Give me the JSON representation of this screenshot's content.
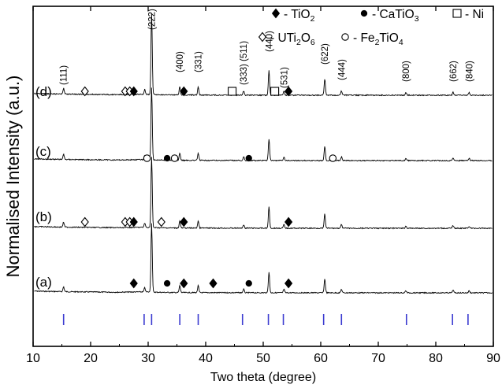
{
  "chart_data": {
    "type": "line",
    "xlabel": "Two theta (degree)",
    "ylabel": "Normalised Intensity (a.u.)",
    "xlim": [
      10,
      90
    ],
    "x_ticks": [
      10,
      20,
      30,
      40,
      50,
      60,
      70,
      80,
      90
    ],
    "legend": [
      {
        "symbol": "filled-diamond",
        "label": "- TiO",
        "sub": "2",
        "suffix": ""
      },
      {
        "symbol": "filled-circle",
        "label": "- CaTiO",
        "sub": "3",
        "suffix": ""
      },
      {
        "symbol": "open-square",
        "label": "- Ni",
        "sub": "",
        "suffix": ""
      },
      {
        "symbol": "open-diamond",
        "label": "- UTi",
        "sub": "2",
        "suffix": "O",
        "sub2": "6"
      },
      {
        "symbol": "open-circle",
        "label": "- Fe",
        "sub": "2",
        "suffix": "TiO",
        "sub2": "4"
      }
    ],
    "series": [
      {
        "name": "(a)",
        "label": "(a)"
      },
      {
        "name": "(b)",
        "label": "(b)"
      },
      {
        "name": "(c)",
        "label": "(c)"
      },
      {
        "name": "(d)",
        "label": "(d)"
      }
    ],
    "peaks": [
      {
        "x": 15.3,
        "h": 0.07,
        "hkl": "(111)"
      },
      {
        "x": 29.4,
        "h": 0.06,
        "hkl": ""
      },
      {
        "x": 30.6,
        "h": 1.0,
        "hkl": "(222)"
      },
      {
        "x": 35.5,
        "h": 0.1,
        "hkl": "(400)"
      },
      {
        "x": 38.7,
        "h": 0.1,
        "hkl": "(331)"
      },
      {
        "x": 46.6,
        "h": 0.05,
        "hkl": "(333) (511)"
      },
      {
        "x": 51.0,
        "h": 0.3,
        "hkl": "(440)"
      },
      {
        "x": 53.6,
        "h": 0.05,
        "hkl": "(531)"
      },
      {
        "x": 60.7,
        "h": 0.2,
        "hkl": "(622)"
      },
      {
        "x": 63.6,
        "h": 0.05,
        "hkl": "(444)"
      },
      {
        "x": 74.8,
        "h": 0.03,
        "hkl": "(800)"
      },
      {
        "x": 83.0,
        "h": 0.04,
        "hkl": "(662)"
      },
      {
        "x": 85.8,
        "h": 0.03,
        "hkl": "(840)"
      }
    ],
    "reference_lines": [
      15.3,
      29.3,
      30.6,
      35.5,
      38.7,
      46.4,
      50.9,
      53.5,
      60.5,
      63.6,
      74.9,
      82.9,
      85.6
    ],
    "markers": [
      {
        "series": "(d)",
        "type": "open-diamond",
        "x": 19.0
      },
      {
        "series": "(d)",
        "type": "open-diamond",
        "x": 26.0
      },
      {
        "series": "(d)",
        "type": "open-diamond",
        "x": 26.8
      },
      {
        "series": "(d)",
        "type": "filled-diamond",
        "x": 27.5
      },
      {
        "series": "(d)",
        "type": "filled-diamond",
        "x": 36.2
      },
      {
        "series": "(d)",
        "type": "open-square",
        "x": 44.6
      },
      {
        "series": "(d)",
        "type": "open-square",
        "x": 52.0
      },
      {
        "series": "(d)",
        "type": "filled-diamond",
        "x": 54.4
      },
      {
        "series": "(c)",
        "type": "open-circle",
        "x": 29.8
      },
      {
        "series": "(c)",
        "type": "filled-circle",
        "x": 33.3
      },
      {
        "series": "(c)",
        "type": "open-circle",
        "x": 34.6
      },
      {
        "series": "(c)",
        "type": "filled-circle",
        "x": 47.5
      },
      {
        "series": "(c)",
        "type": "open-circle",
        "x": 62.1
      },
      {
        "series": "(b)",
        "type": "open-diamond",
        "x": 19.0
      },
      {
        "series": "(b)",
        "type": "open-diamond",
        "x": 26.0
      },
      {
        "series": "(b)",
        "type": "open-diamond",
        "x": 26.8
      },
      {
        "series": "(b)",
        "type": "filled-diamond",
        "x": 27.5
      },
      {
        "series": "(b)",
        "type": "open-diamond",
        "x": 32.3
      },
      {
        "series": "(b)",
        "type": "filled-diamond",
        "x": 36.2
      },
      {
        "series": "(b)",
        "type": "filled-diamond",
        "x": 54.4
      },
      {
        "series": "(a)",
        "type": "filled-diamond",
        "x": 27.5
      },
      {
        "series": "(a)",
        "type": "filled-circle",
        "x": 33.3
      },
      {
        "series": "(a)",
        "type": "filled-diamond",
        "x": 36.2
      },
      {
        "series": "(a)",
        "type": "filled-diamond",
        "x": 41.3
      },
      {
        "series": "(a)",
        "type": "filled-circle",
        "x": 47.5
      },
      {
        "series": "(a)",
        "type": "filled-diamond",
        "x": 54.4
      }
    ],
    "colors": {
      "line": "#000000",
      "reference": "#3a3ad0",
      "frame": "#000000"
    }
  }
}
